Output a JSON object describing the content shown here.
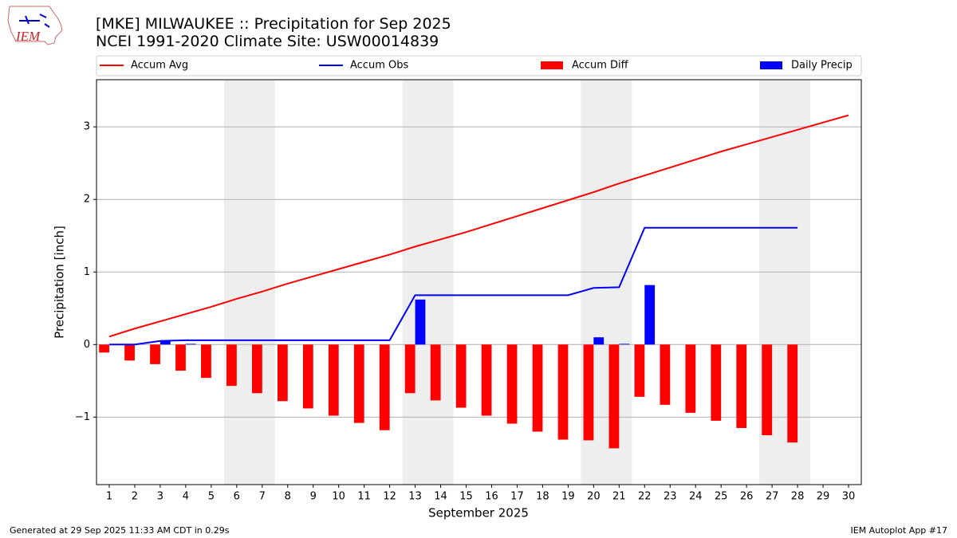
{
  "chart_data": {
    "type": "combo",
    "title": "[MKE] MILWAUKEE :: Precipitation for Sep 2025",
    "subtitle": "NCEI 1991-2020 Climate Site: USW00014839",
    "xlabel": "September 2025",
    "ylabel": "Precipitation [inch]",
    "x": [
      1,
      2,
      3,
      4,
      5,
      6,
      7,
      8,
      9,
      10,
      11,
      12,
      13,
      14,
      15,
      16,
      17,
      18,
      19,
      20,
      21,
      22,
      23,
      24,
      25,
      26,
      27,
      28,
      29,
      30
    ],
    "xlim": [
      0.5,
      30.5
    ],
    "xticks": [
      1,
      2,
      3,
      4,
      5,
      6,
      7,
      8,
      9,
      10,
      11,
      12,
      13,
      14,
      15,
      16,
      17,
      18,
      19,
      20,
      21,
      22,
      23,
      24,
      25,
      26,
      27,
      28,
      29,
      30
    ],
    "ylim": [
      -1.93,
      3.65
    ],
    "yticks": [
      {
        "value": -1,
        "label": "−1"
      },
      0,
      1,
      2,
      3
    ],
    "grid": true,
    "legend": "top",
    "shaded_ranges": [
      [
        5.5,
        7.5
      ],
      [
        12.5,
        14.5
      ],
      [
        19.5,
        21.5
      ],
      [
        26.5,
        28.5
      ]
    ],
    "shade_color": "#eeeeee",
    "series": [
      {
        "name": "Accum Avg",
        "kind": "line",
        "color": "#ff0000",
        "values": [
          0.11,
          0.22,
          0.32,
          0.42,
          0.52,
          0.63,
          0.73,
          0.84,
          0.94,
          1.04,
          1.14,
          1.24,
          1.35,
          1.45,
          1.55,
          1.66,
          1.77,
          1.88,
          1.99,
          2.1,
          2.22,
          2.33,
          2.44,
          2.55,
          2.66,
          2.76,
          2.86,
          2.96,
          3.06,
          3.16
        ]
      },
      {
        "name": "Accum Obs",
        "kind": "line",
        "color": "#0000ff",
        "values": [
          0,
          0,
          0.05,
          0.06,
          0.06,
          0.06,
          0.06,
          0.06,
          0.06,
          0.06,
          0.06,
          0.06,
          0.68,
          0.68,
          0.68,
          0.68,
          0.68,
          0.68,
          0.68,
          0.78,
          0.79,
          1.61,
          1.61,
          1.61,
          1.61,
          1.61,
          1.61,
          1.61,
          null,
          null
        ]
      },
      {
        "name": "Accum Diff",
        "kind": "bar",
        "side": "left",
        "color": "#ff0000",
        "values": [
          -0.11,
          -0.22,
          -0.27,
          -0.36,
          -0.46,
          -0.57,
          -0.67,
          -0.78,
          -0.88,
          -0.98,
          -1.08,
          -1.18,
          -0.67,
          -0.77,
          -0.87,
          -0.98,
          -1.09,
          -1.2,
          -1.31,
          -1.32,
          -1.43,
          -0.72,
          -0.83,
          -0.94,
          -1.05,
          -1.15,
          -1.25,
          -1.35,
          null,
          null
        ]
      },
      {
        "name": "Daily Precip",
        "kind": "bar",
        "side": "right",
        "color": "#0000ff",
        "values": [
          0,
          0,
          0.05,
          0.01,
          0,
          0,
          0,
          0,
          0,
          0,
          0,
          0,
          0.62,
          0,
          0,
          0,
          0,
          0,
          0,
          0.1,
          0.01,
          0.82,
          0,
          0,
          0,
          0,
          0,
          0,
          null,
          null
        ]
      }
    ],
    "footer_left": "Generated at 29 Sep 2025 11:33 AM CDT in 0.29s",
    "footer_right": "IEM Autoplot App #17",
    "logo_text": "IEM"
  }
}
